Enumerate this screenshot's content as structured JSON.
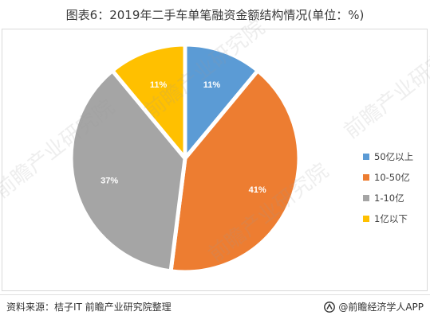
{
  "title": "图表6：2019年二手车单笔融资金额结构情况(单位：%)",
  "source": "资料来源：桔子IT 前瞻产业研究院整理",
  "brand": "@前瞻经济学人APP",
  "watermark": {
    "text": "前瞻产业研究院",
    "color": "#c8c8c8"
  },
  "colors": {
    "background": "#ffffff",
    "slice_border": "#ffffff"
  },
  "chart_data": {
    "type": "pie",
    "title": "图表6：2019年二手车单笔融资金额结构情况(单位：%)",
    "unit": "%",
    "legend_position": "right",
    "start": "12 o'clock, clockwise",
    "slices": [
      {
        "label": "50亿以上",
        "value": 11,
        "display": "11%",
        "color": "#5B9BD5",
        "border": "#4A7FB5"
      },
      {
        "label": "10-50亿",
        "value": 41,
        "display": "41%",
        "color": "#ED7D31",
        "border": "#C8641F"
      },
      {
        "label": "1-10亿",
        "value": 37,
        "display": "37%",
        "color": "#A5A5A5",
        "border": "#838383"
      },
      {
        "label": "1亿以下",
        "value": 11,
        "display": "11%",
        "color": "#FFC000",
        "border": "#D9A300"
      }
    ]
  }
}
